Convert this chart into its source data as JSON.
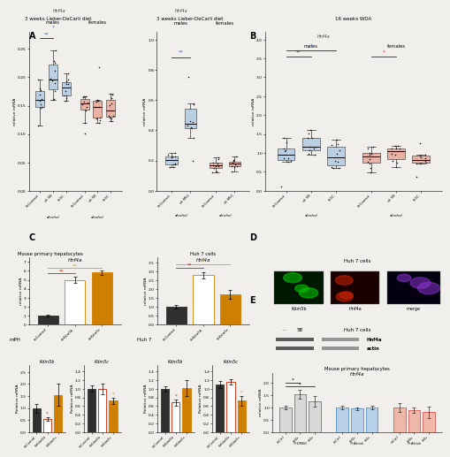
{
  "bg_color": "#f0efeb",
  "panel_A1_title": "3 weeks Lieber-DeCarli diet",
  "panel_A2_title": "3 weeks Lieber-DeCarli diet",
  "panel_B_title": "16 weeks WDA",
  "panel_C_title_1": "Mouse primary hepatocytes",
  "panel_C_title_2": "Huh 7 cells",
  "panel_C_title_3": "mPH",
  "panel_C_title_4": "Huh 7",
  "panel_D_title": "Huh 7 cells",
  "panel_E_title": "Mouse primary hepatocytes",
  "lb_color": "#adc6e0",
  "lr_color": "#e8a090",
  "dark_color": "#303030",
  "orange_color": "#d08000",
  "orange2_color": "#c8a428",
  "red_sig": "#cc2200",
  "blue_sig": "#3060cc"
}
